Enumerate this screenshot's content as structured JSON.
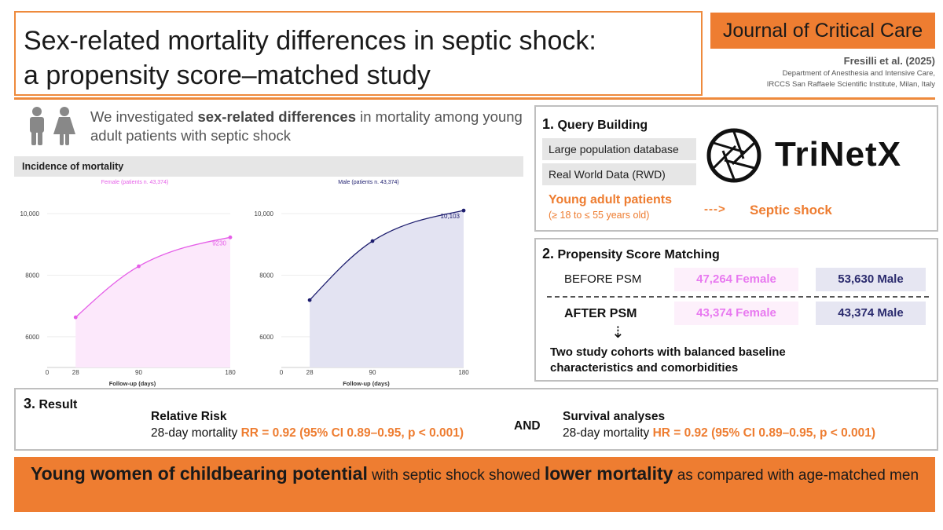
{
  "header": {
    "title_line1": "Sex-related mortality differences in septic shock:",
    "title_line2": "a propensity score–matched study",
    "journal": "Journal of Critical Care",
    "authors": "Fresilli et al. (2025)",
    "affiliation_line1": "Department of Anesthesia and Intensive Care,",
    "affiliation_line2": "IRCCS San Raffaele Scientific Institute, Milan, Italy"
  },
  "intro": {
    "text_pre": "We investigated ",
    "text_bold": "sex-related differences",
    "text_post": " in mortality among young adult patients with septic shock"
  },
  "mortality": {
    "title": "Incidence of mortality"
  },
  "chart_data": [
    {
      "type": "area",
      "title": "Female (patients n. 43,374)",
      "xlabel": "Follow-up (days)",
      "ylabel": "",
      "x": [
        28,
        90,
        180
      ],
      "x_ticks": [
        "0",
        "28",
        "90",
        "180"
      ],
      "y_ticks": [
        "6000",
        "8000",
        "10,000"
      ],
      "y": [
        6630,
        8290,
        9230
      ],
      "xlim": [
        0,
        180
      ],
      "ylim": [
        5000,
        11000
      ],
      "end_label": "9230",
      "color": "#e55ee8",
      "fill": "#fce8fb"
    },
    {
      "type": "area",
      "title": "Male (patients n. 43,374)",
      "xlabel": "Follow-up (days)",
      "ylabel": "",
      "x": [
        28,
        90,
        180
      ],
      "x_ticks": [
        "0",
        "28",
        "90",
        "180"
      ],
      "y_ticks": [
        "6000",
        "8000",
        "10,000"
      ],
      "y": [
        7190,
        9110,
        10103
      ],
      "xlim": [
        0,
        180
      ],
      "ylim": [
        5000,
        11000
      ],
      "end_label": "10,103",
      "color": "#1d1d6e",
      "fill": "#e3e3f2"
    }
  ],
  "query": {
    "number": "1.",
    "title": "Query Building",
    "box1": "Large population database",
    "box2": "Real World Data (RWD)",
    "young_title": "Young adult patients",
    "young_range": "(≥ 18 to ≤ 55 years old)",
    "arrow": "--->",
    "septic": "Septic shock",
    "logo_text": "TriNetX"
  },
  "psm": {
    "number": "2.",
    "title": "Propensity Score Matching",
    "before_label": "BEFORE PSM",
    "before_female": "47,264 Female",
    "before_male": "53,630 Male",
    "after_label": "AFTER PSM",
    "after_female": "43,374 Female",
    "after_male": "43,374 Male",
    "down_arrow": "⇣",
    "cohort_line1": "Two study cohorts with balanced baseline",
    "cohort_line2": "characteristics and comorbidities"
  },
  "result": {
    "number": "3.",
    "title": "Result",
    "rr_title": "Relative Risk",
    "rr_prefix": "28-day mortality ",
    "rr_value": "RR = 0.92 (95% CI 0.89–0.95, p < 0.001)",
    "and": "AND",
    "surv_title": "Survival analyses",
    "hr_prefix": "28-day mortality ",
    "hr_value": "HR = 0.92 (95% CI 0.89–0.95, p < 0.001)"
  },
  "conclusion": {
    "bold1": "Young women of childbearing potential",
    "mid1": " with septic shock showed ",
    "bold2": "lower mortality",
    "mid2": " as compared with age-matched men"
  },
  "colors": {
    "accent": "#ee7d31",
    "female": "#e55ee8",
    "male": "#1d1d6e"
  }
}
